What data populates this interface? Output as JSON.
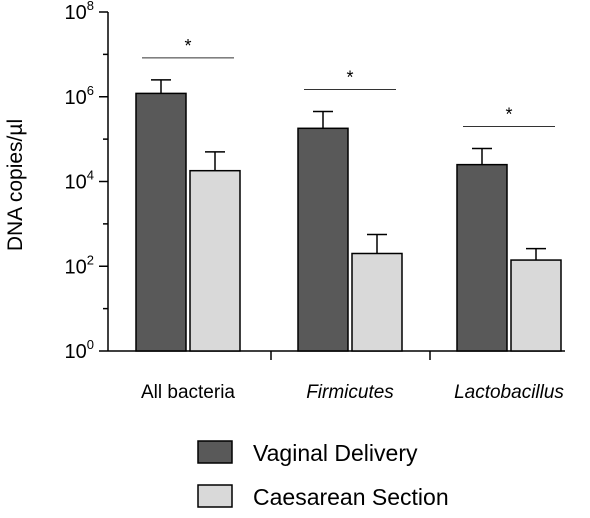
{
  "chart_data": {
    "type": "bar",
    "ylabel": "DNA copies/µl",
    "yscale": "log10",
    "ylim": [
      1,
      100000000
    ],
    "yticks": [
      {
        "base": "10",
        "exp": "0"
      },
      {
        "base": "10",
        "exp": "2"
      },
      {
        "base": "10",
        "exp": "4"
      },
      {
        "base": "10",
        "exp": "6"
      },
      {
        "base": "10",
        "exp": "8"
      }
    ],
    "categories": [
      "All bacteria",
      "Firmicutes",
      "Lactobacillus"
    ],
    "category_italic": [
      false,
      true,
      true
    ],
    "series": [
      {
        "name": "Vaginal Delivery",
        "color": "#595959",
        "values": [
          1200000,
          180000,
          25000
        ],
        "error_upper": [
          2500000,
          450000,
          60000
        ]
      },
      {
        "name": "Caesarean Section",
        "color": "#d9d9d9",
        "values": [
          18000,
          200,
          140
        ],
        "error_upper": [
          50000,
          560,
          260
        ]
      }
    ],
    "significance": [
      "*",
      "*",
      "*"
    ],
    "legend_position": "bottom"
  }
}
